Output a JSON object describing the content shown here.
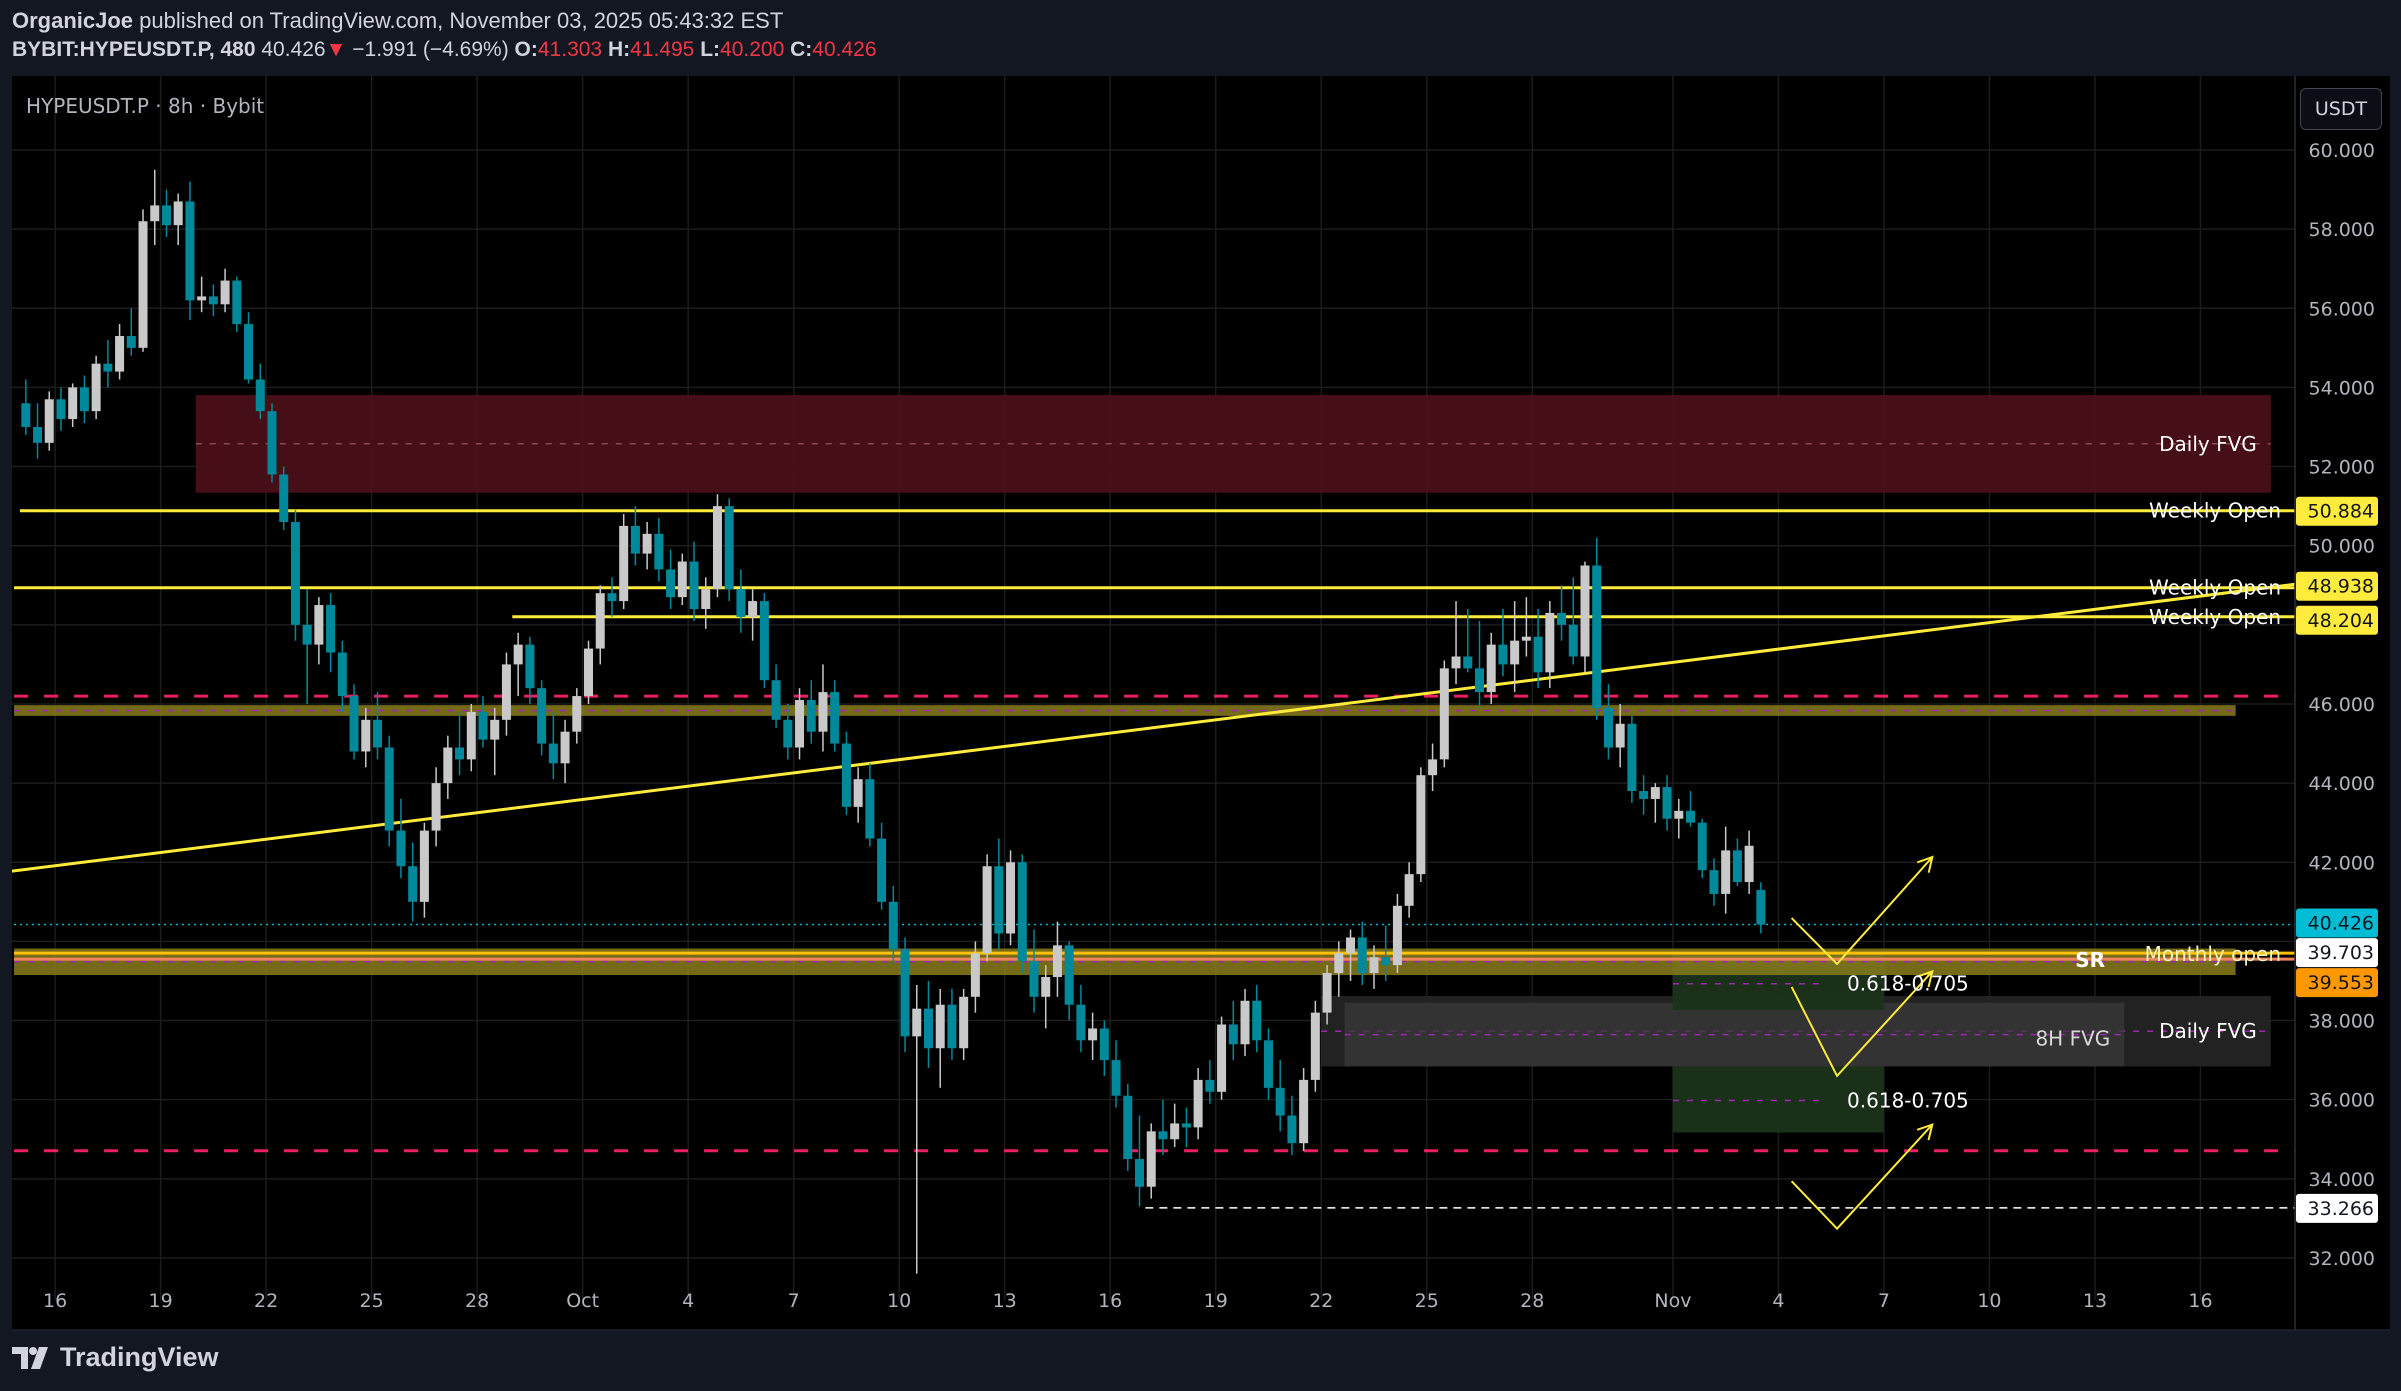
{
  "header": {
    "author": "OrganicJoe",
    "published": "published on TradingView.com, November 03, 2025 05:43:32 EST",
    "symbol": "BYBIT:HYPEUSDT.P, 480",
    "last": "40.426",
    "change": "−1.991 (−4.69%)",
    "o_label": "O:",
    "o": "41.303",
    "h_label": "H:",
    "h": "41.495",
    "l_label": "L:",
    "l": "40.200",
    "c_label": "C:",
    "c": "40.426",
    "direction_icon": "triangle-down-icon"
  },
  "legend": "HYPEUSDT.P · 8h · Bybit",
  "currency_button": "USDT",
  "footer": {
    "logo_text": "TradingView"
  },
  "colors": {
    "up": "#c9c9c9",
    "down": "#00899b",
    "yellow": "#ffeb3b",
    "pink": "#e91e63",
    "olive": "#8a7d1c",
    "fvg_red": "#4a1018",
    "fvg_gray": "#242424",
    "green_zone": "#1b3319",
    "price_tag": "#00bcd4",
    "orange_tag": "#ff9800"
  },
  "chart_data": {
    "type": "candlestick",
    "timeframe": "8h",
    "start": "2025-09-15T00:00",
    "ylim": [
      31.2,
      61
    ],
    "y_ticks": [
      "32.000",
      "34.000",
      "36.000",
      "38.000",
      "40.000",
      "42.000",
      "44.000",
      "46.000",
      "48.000",
      "50.000",
      "52.000",
      "54.000",
      "56.000",
      "58.000",
      "60.000"
    ],
    "x_ticks": [
      {
        "date": "2025-09-16",
        "label": "16"
      },
      {
        "date": "2025-09-19",
        "label": "19"
      },
      {
        "date": "2025-09-22",
        "label": "22"
      },
      {
        "date": "2025-09-25",
        "label": "25"
      },
      {
        "date": "2025-09-28",
        "label": "28"
      },
      {
        "date": "2025-10-01",
        "label": "Oct"
      },
      {
        "date": "2025-10-04",
        "label": "4"
      },
      {
        "date": "2025-10-07",
        "label": "7"
      },
      {
        "date": "2025-10-10",
        "label": "10"
      },
      {
        "date": "2025-10-13",
        "label": "13"
      },
      {
        "date": "2025-10-16",
        "label": "16"
      },
      {
        "date": "2025-10-19",
        "label": "19"
      },
      {
        "date": "2025-10-22",
        "label": "22"
      },
      {
        "date": "2025-10-25",
        "label": "25"
      },
      {
        "date": "2025-10-28",
        "label": "28"
      },
      {
        "date": "2025-11-01",
        "label": "Nov"
      },
      {
        "date": "2025-11-04",
        "label": "4"
      },
      {
        "date": "2025-11-07",
        "label": "7"
      },
      {
        "date": "2025-11-10",
        "label": "10"
      },
      {
        "date": "2025-11-13",
        "label": "13"
      },
      {
        "date": "2025-11-16",
        "label": "16"
      }
    ],
    "ohlc": [
      [
        53.6,
        54.2,
        52.8,
        53.0
      ],
      [
        53.0,
        53.6,
        52.2,
        52.6
      ],
      [
        52.6,
        53.9,
        52.4,
        53.7
      ],
      [
        53.7,
        54.0,
        52.9,
        53.2
      ],
      [
        53.2,
        54.1,
        53.0,
        54.0
      ],
      [
        54.0,
        54.3,
        53.1,
        53.4
      ],
      [
        53.4,
        54.8,
        53.2,
        54.6
      ],
      [
        54.6,
        55.2,
        54.0,
        54.4
      ],
      [
        54.4,
        55.6,
        54.2,
        55.3
      ],
      [
        55.3,
        56.0,
        54.8,
        55.0
      ],
      [
        55.0,
        58.5,
        54.9,
        58.2
      ],
      [
        58.2,
        59.5,
        57.6,
        58.6
      ],
      [
        58.6,
        59.0,
        57.8,
        58.1
      ],
      [
        58.1,
        58.9,
        57.6,
        58.7
      ],
      [
        58.7,
        59.2,
        55.7,
        56.2
      ],
      [
        56.2,
        56.8,
        55.9,
        56.3
      ],
      [
        56.3,
        56.6,
        55.8,
        56.1
      ],
      [
        56.1,
        57.0,
        55.9,
        56.7
      ],
      [
        56.7,
        56.8,
        55.4,
        55.6
      ],
      [
        55.6,
        55.9,
        54.1,
        54.2
      ],
      [
        54.2,
        54.6,
        53.2,
        53.4
      ],
      [
        53.4,
        53.6,
        51.6,
        51.8
      ],
      [
        51.8,
        52.0,
        50.4,
        50.6
      ],
      [
        50.6,
        50.9,
        47.6,
        48.0
      ],
      [
        48.0,
        48.9,
        46.0,
        47.5
      ],
      [
        47.5,
        48.7,
        47.0,
        48.5
      ],
      [
        48.5,
        48.8,
        46.8,
        47.3
      ],
      [
        47.3,
        47.6,
        45.8,
        46.2
      ],
      [
        46.2,
        46.5,
        44.6,
        44.8
      ],
      [
        44.8,
        45.9,
        44.4,
        45.6
      ],
      [
        45.6,
        46.3,
        44.6,
        44.9
      ],
      [
        44.9,
        45.2,
        42.4,
        42.8
      ],
      [
        42.8,
        43.6,
        41.6,
        41.9
      ],
      [
        41.9,
        42.5,
        40.5,
        41.0
      ],
      [
        41.0,
        43.0,
        40.6,
        42.8
      ],
      [
        42.8,
        44.4,
        42.4,
        44.0
      ],
      [
        44.0,
        45.2,
        43.6,
        44.9
      ],
      [
        44.9,
        45.8,
        44.2,
        44.6
      ],
      [
        44.6,
        46.0,
        44.3,
        45.8
      ],
      [
        45.8,
        46.2,
        44.9,
        45.1
      ],
      [
        45.1,
        45.9,
        44.2,
        45.6
      ],
      [
        45.6,
        47.3,
        45.2,
        47.0
      ],
      [
        47.0,
        47.8,
        46.2,
        47.5
      ],
      [
        47.5,
        47.7,
        46.0,
        46.4
      ],
      [
        46.4,
        46.6,
        44.7,
        45.0
      ],
      [
        45.0,
        45.8,
        44.1,
        44.5
      ],
      [
        44.5,
        45.6,
        44.0,
        45.3
      ],
      [
        45.3,
        46.4,
        45.0,
        46.2
      ],
      [
        46.2,
        47.6,
        46.0,
        47.4
      ],
      [
        47.4,
        49.0,
        47.0,
        48.8
      ],
      [
        48.8,
        49.2,
        48.2,
        48.6
      ],
      [
        48.6,
        50.8,
        48.4,
        50.5
      ],
      [
        50.5,
        51.0,
        49.5,
        49.8
      ],
      [
        49.8,
        50.6,
        49.4,
        50.3
      ],
      [
        50.3,
        50.7,
        49.1,
        49.4
      ],
      [
        49.4,
        49.9,
        48.4,
        48.7
      ],
      [
        48.7,
        49.8,
        48.5,
        49.6
      ],
      [
        49.6,
        50.1,
        48.1,
        48.4
      ],
      [
        48.4,
        49.2,
        47.9,
        48.9
      ],
      [
        48.9,
        51.3,
        48.7,
        51.0
      ],
      [
        51.0,
        51.2,
        48.6,
        48.9
      ],
      [
        48.9,
        49.4,
        47.8,
        48.2
      ],
      [
        48.2,
        48.9,
        47.6,
        48.6
      ],
      [
        48.6,
        48.8,
        46.4,
        46.6
      ],
      [
        46.6,
        47.0,
        45.4,
        45.6
      ],
      [
        45.6,
        46.0,
        44.6,
        44.9
      ],
      [
        44.9,
        46.4,
        44.6,
        46.1
      ],
      [
        46.1,
        46.6,
        45.0,
        45.3
      ],
      [
        45.3,
        47.0,
        44.8,
        46.3
      ],
      [
        46.3,
        46.6,
        44.8,
        45.0
      ],
      [
        45.0,
        45.3,
        43.2,
        43.4
      ],
      [
        43.4,
        44.4,
        43.0,
        44.1
      ],
      [
        44.1,
        44.5,
        42.4,
        42.6
      ],
      [
        42.6,
        43.0,
        40.8,
        41.0
      ],
      [
        41.0,
        41.4,
        39.4,
        39.8
      ],
      [
        39.8,
        40.1,
        37.2,
        37.6
      ],
      [
        37.6,
        38.9,
        31.6,
        38.3
      ],
      [
        38.3,
        39.0,
        36.8,
        37.3
      ],
      [
        37.3,
        38.8,
        36.3,
        38.4
      ],
      [
        38.4,
        38.8,
        37.0,
        37.3
      ],
      [
        37.3,
        38.8,
        37.0,
        38.6
      ],
      [
        38.6,
        40.0,
        38.2,
        39.7
      ],
      [
        39.7,
        42.2,
        39.5,
        41.9
      ],
      [
        41.9,
        42.6,
        39.8,
        40.2
      ],
      [
        40.2,
        42.3,
        39.9,
        42.0
      ],
      [
        42.0,
        42.2,
        39.2,
        39.5
      ],
      [
        39.5,
        40.3,
        38.2,
        38.6
      ],
      [
        38.6,
        39.4,
        37.8,
        39.1
      ],
      [
        39.1,
        40.5,
        38.6,
        39.9
      ],
      [
        39.9,
        40.0,
        38.0,
        38.4
      ],
      [
        38.4,
        38.9,
        37.2,
        37.5
      ],
      [
        37.5,
        38.2,
        37.0,
        37.8
      ],
      [
        37.8,
        38.0,
        36.6,
        37.0
      ],
      [
        37.0,
        37.5,
        35.8,
        36.1
      ],
      [
        36.1,
        36.4,
        34.2,
        34.5
      ],
      [
        34.5,
        35.6,
        33.3,
        33.8
      ],
      [
        33.8,
        35.4,
        33.5,
        35.2
      ],
      [
        35.2,
        36.0,
        34.6,
        35.0
      ],
      [
        35.0,
        35.9,
        34.8,
        35.4
      ],
      [
        35.4,
        35.8,
        34.8,
        35.3
      ],
      [
        35.3,
        36.8,
        35.0,
        36.5
      ],
      [
        36.5,
        37.0,
        35.9,
        36.2
      ],
      [
        36.2,
        38.1,
        36.0,
        37.9
      ],
      [
        37.9,
        38.5,
        37.0,
        37.4
      ],
      [
        37.4,
        38.8,
        37.1,
        38.5
      ],
      [
        38.5,
        38.9,
        37.2,
        37.5
      ],
      [
        37.5,
        37.8,
        36.0,
        36.3
      ],
      [
        36.3,
        37.0,
        35.2,
        35.6
      ],
      [
        35.6,
        36.1,
        34.6,
        34.9
      ],
      [
        34.9,
        36.8,
        34.7,
        36.5
      ],
      [
        36.5,
        38.5,
        36.2,
        38.2
      ],
      [
        38.2,
        39.4,
        37.9,
        39.2
      ],
      [
        39.2,
        40.0,
        38.6,
        39.7
      ],
      [
        39.7,
        40.3,
        39.0,
        40.1
      ],
      [
        40.1,
        40.5,
        38.9,
        39.2
      ],
      [
        39.2,
        39.9,
        38.8,
        39.6
      ],
      [
        39.6,
        40.4,
        39.0,
        39.4
      ],
      [
        39.4,
        41.2,
        39.2,
        40.9
      ],
      [
        40.9,
        42.0,
        40.6,
        41.7
      ],
      [
        41.7,
        44.4,
        41.5,
        44.2
      ],
      [
        44.2,
        45.0,
        43.8,
        44.6
      ],
      [
        44.6,
        47.1,
        44.4,
        46.9
      ],
      [
        46.9,
        48.6,
        46.5,
        47.2
      ],
      [
        47.2,
        48.4,
        46.8,
        46.9
      ],
      [
        46.9,
        48.1,
        45.9,
        46.3
      ],
      [
        46.3,
        47.8,
        46.0,
        47.5
      ],
      [
        47.5,
        48.4,
        46.7,
        47.0
      ],
      [
        47.0,
        48.6,
        46.3,
        47.6
      ],
      [
        47.6,
        48.7,
        47.2,
        47.7
      ],
      [
        47.7,
        48.4,
        46.4,
        46.8
      ],
      [
        46.8,
        48.6,
        46.4,
        48.3
      ],
      [
        48.3,
        49.0,
        47.6,
        48.0
      ],
      [
        48.0,
        49.2,
        47.0,
        47.2
      ],
      [
        47.2,
        49.6,
        46.8,
        49.5
      ],
      [
        49.5,
        50.2,
        45.6,
        45.9
      ],
      [
        45.9,
        46.5,
        44.6,
        44.9
      ],
      [
        44.9,
        46.0,
        44.4,
        45.5
      ],
      [
        45.5,
        45.7,
        43.5,
        43.8
      ],
      [
        43.8,
        44.2,
        43.2,
        43.6
      ],
      [
        43.6,
        44.0,
        43.0,
        43.9
      ],
      [
        43.9,
        44.2,
        42.8,
        43.1
      ],
      [
        43.1,
        43.6,
        42.6,
        43.3
      ],
      [
        43.3,
        43.8,
        42.9,
        43.0
      ],
      [
        43.0,
        43.1,
        41.6,
        41.8
      ],
      [
        41.8,
        42.1,
        40.9,
        41.2
      ],
      [
        41.2,
        42.9,
        40.7,
        42.3
      ],
      [
        42.3,
        42.6,
        41.4,
        41.5
      ],
      [
        41.5,
        42.8,
        41.2,
        42.417
      ],
      [
        41.303,
        41.495,
        40.2,
        40.426
      ]
    ],
    "zones": [
      {
        "name": "daily-fvg-upper",
        "from": "2025-09-20",
        "to": "2025-11-18",
        "top": 53.81,
        "bottom": 51.34,
        "color": "#4a1018",
        "label": "Daily FVG"
      },
      {
        "name": "daily-fvg-lower",
        "from": "2025-10-22",
        "to": "2025-11-18",
        "top": 38.62,
        "bottom": 36.84,
        "color": "#242424",
        "label": "Daily FVG"
      },
      {
        "name": "8h-fvg",
        "from": "2025-10-22T16:00",
        "to": "2025-11-13T20:00",
        "top": 38.45,
        "bottom": 36.84,
        "color": "#3a3a3a",
        "label": "8H FVG"
      },
      {
        "name": "fib-zone-1",
        "from": "2025-11-01",
        "to": "2025-11-07",
        "top": 39.74,
        "bottom": 38.27,
        "color": "#1b3319",
        "label": "0.618-0.705"
      },
      {
        "name": "fib-zone-2",
        "from": "2025-11-01",
        "to": "2025-11-07",
        "top": 36.84,
        "bottom": 35.17,
        "color": "#1b3319",
        "label": "0.618-0.705"
      },
      {
        "name": "sr-band-46",
        "from": "2025-09-14T20:00",
        "to": "2025-11-17",
        "top": 45.97,
        "bottom": 45.7,
        "color": "#8a7d1c",
        "label": ""
      },
      {
        "name": "sr-band-monthly",
        "from": "2025-09-14T20:00",
        "to": "2025-11-17",
        "top": 39.82,
        "bottom": 39.15,
        "color": "#8a7d1c",
        "label": ""
      }
    ],
    "levels": [
      {
        "name": "weekly-open-1",
        "price": 50.884,
        "from": "2025-09-15",
        "label": "Weekly Open",
        "tag": "50.884",
        "color": "#ffeb3b",
        "style": "solid"
      },
      {
        "name": "weekly-open-2",
        "price": 48.938,
        "from": "2025-09-14T20:00",
        "label": "Weekly Open",
        "tag": "48.938",
        "color": "#ffeb3b",
        "style": "solid"
      },
      {
        "name": "weekly-open-3",
        "price": 48.204,
        "from": "2025-09-29",
        "label": "Weekly Open",
        "tag": "48.204",
        "color": "#ffeb3b",
        "style": "solid"
      },
      {
        "name": "pink-level-high",
        "price": 46.2,
        "from": "2025-09-14T20:00",
        "label": "",
        "tag": "",
        "color": "#e91e63",
        "style": "dash"
      },
      {
        "name": "pink-level-low",
        "price": 34.71,
        "from": "2025-09-14T20:00",
        "label": "",
        "tag": "",
        "color": "#e91e63",
        "style": "dash"
      },
      {
        "name": "monthly-open",
        "price": 39.703,
        "from": "2025-09-14T20:00",
        "label": "Monthly open",
        "tag": "39.703",
        "color": "#ffc107",
        "style": "solid"
      },
      {
        "name": "sr-level",
        "price": 39.553,
        "from": "2025-09-14T20:00",
        "label": "SR",
        "tag": "39.553",
        "color": "#f0845c",
        "style": "solid"
      },
      {
        "name": "low-level",
        "price": 33.266,
        "from": "2025-10-17",
        "label": "",
        "tag": "33.266",
        "color": "#ffffff",
        "style": "dot"
      },
      {
        "name": "current-price",
        "price": 40.426,
        "from": "2025-09-14T20:00",
        "label": "",
        "tag": "40.426",
        "color": "#00bcd4",
        "style": "dot"
      }
    ],
    "trendline": {
      "from": [
        "2025-09-15",
        41.8
      ],
      "to": [
        "2025-11-18",
        48.95
      ]
    },
    "arrows": [
      [
        [
          "2025-11-04T09:00",
          40.59
        ],
        [
          "2025-11-05T16:00",
          39.43
        ],
        [
          "2025-11-08T09:00",
          42.13
        ]
      ],
      [
        [
          "2025-11-04T09:00",
          38.85
        ],
        [
          "2025-11-05T16:00",
          36.6
        ],
        [
          "2025-11-08T09:00",
          39.24
        ]
      ],
      [
        [
          "2025-11-04T09:00",
          33.94
        ],
        [
          "2025-11-05T16:00",
          32.74
        ],
        [
          "2025-11-08T09:00",
          35.37
        ]
      ]
    ]
  }
}
